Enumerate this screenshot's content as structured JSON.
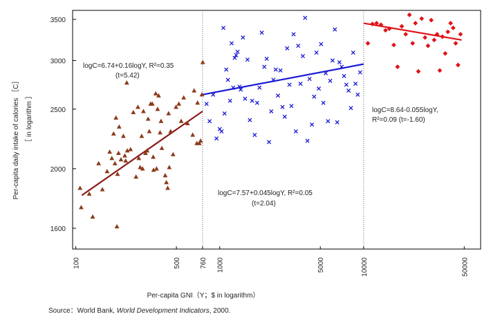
{
  "chart_data": {
    "type": "scatter",
    "x_scale": "log",
    "y_scale": "log",
    "xlim": [
      95,
      65000
    ],
    "ylim": [
      1480,
      3620
    ],
    "grid": false,
    "xlabel": "Per-capita GNI（Y；$ in logarithm）",
    "ylabel_main": "Per-capita daily intake of calories ［C］",
    "ylabel_sub": "［ in logarithm ］",
    "x_ticks": [
      100,
      500,
      760,
      1000,
      5000,
      10000,
      50000
    ],
    "x_tick_labels": [
      "100",
      "500",
      "760",
      "1000",
      "5000",
      "10000",
      "50000"
    ],
    "y_ticks": [
      1600,
      2000,
      2500,
      3000,
      3500
    ],
    "y_tick_labels": [
      "1600",
      "2000",
      "2500",
      "3000",
      "3500"
    ],
    "dividers": [
      760,
      10000
    ],
    "source_prefix": "Source：World Bank, ",
    "source_title": "World Development Indicators",
    "source_suffix": ", 2000.",
    "series": [
      {
        "marker": "triangle",
        "color": "#8B3A1A",
        "fit_color": "#8B1A1A",
        "fit": [
          [
            110,
            1810
          ],
          [
            760,
            2480
          ]
        ],
        "equation": "logC=6.74+0.16logY,  R²=0.35",
        "stat": "(t=5.42)",
        "points": [
          [
            107,
            1860
          ],
          [
            109,
            1730
          ],
          [
            124,
            1820
          ],
          [
            131,
            1670
          ],
          [
            144,
            2040
          ],
          [
            153,
            1850
          ],
          [
            165,
            1980
          ],
          [
            172,
            2130
          ],
          [
            178,
            2080
          ],
          [
            183,
            2280
          ],
          [
            187,
            2040
          ],
          [
            190,
            2420
          ],
          [
            193,
            1610
          ],
          [
            195,
            1960
          ],
          [
            198,
            2120
          ],
          [
            200,
            2340
          ],
          [
            206,
            2070
          ],
          [
            214,
            2260
          ],
          [
            219,
            2100
          ],
          [
            222,
            2060
          ],
          [
            226,
            2760
          ],
          [
            228,
            2140
          ],
          [
            240,
            2150
          ],
          [
            251,
            2470
          ],
          [
            262,
            1940
          ],
          [
            270,
            2520
          ],
          [
            274,
            2080
          ],
          [
            280,
            2010
          ],
          [
            287,
            2260
          ],
          [
            291,
            2000
          ],
          [
            295,
            2480
          ],
          [
            305,
            2120
          ],
          [
            313,
            2140
          ],
          [
            318,
            2410
          ],
          [
            324,
            2300
          ],
          [
            331,
            2550
          ],
          [
            340,
            2550
          ],
          [
            345,
            2090
          ],
          [
            347,
            1990
          ],
          [
            359,
            2650
          ],
          [
            364,
            2000
          ],
          [
            370,
            2500
          ],
          [
            376,
            2630
          ],
          [
            385,
            2290
          ],
          [
            391,
            2390
          ],
          [
            396,
            2160
          ],
          [
            418,
            1950
          ],
          [
            426,
            1900
          ],
          [
            435,
            1860
          ],
          [
            441,
            2460
          ],
          [
            446,
            2010
          ],
          [
            456,
            2300
          ],
          [
            474,
            2110
          ],
          [
            497,
            2520
          ],
          [
            520,
            2550
          ],
          [
            540,
            2390
          ],
          [
            562,
            2610
          ],
          [
            597,
            2370
          ],
          [
            649,
            2270
          ],
          [
            664,
            2680
          ],
          [
            693,
            2200
          ],
          [
            701,
            2560
          ],
          [
            721,
            2200
          ],
          [
            736,
            2220
          ],
          [
            752,
            2640
          ],
          [
            762,
            2980
          ]
        ]
      },
      {
        "marker": "cross",
        "color": "#1a1ad6",
        "fit_color": "#1a1ad6",
        "fit": [
          [
            760,
            2640
          ],
          [
            10000,
            2960
          ]
        ],
        "equation": "logC=7.57+0.045logY,  R²=0.05",
        "stat": "(t=2.04)",
        "points": [
          [
            810,
            2550
          ],
          [
            850,
            2390
          ],
          [
            900,
            2640
          ],
          [
            950,
            2240
          ],
          [
            1000,
            2320
          ],
          [
            1030,
            2300
          ],
          [
            1060,
            3390
          ],
          [
            1080,
            2460
          ],
          [
            1110,
            2900
          ],
          [
            1140,
            2790
          ],
          [
            1180,
            2580
          ],
          [
            1210,
            3200
          ],
          [
            1240,
            2710
          ],
          [
            1270,
            3030
          ],
          [
            1300,
            3060
          ],
          [
            1330,
            3100
          ],
          [
            1370,
            2720
          ],
          [
            1400,
            2690
          ],
          [
            1450,
            3270
          ],
          [
            1500,
            2600
          ],
          [
            1560,
            3010
          ],
          [
            1620,
            2400
          ],
          [
            1680,
            2580
          ],
          [
            1750,
            2270
          ],
          [
            1820,
            2560
          ],
          [
            1890,
            2710
          ],
          [
            1960,
            3330
          ],
          [
            2040,
            2930
          ],
          [
            2120,
            3020
          ],
          [
            2200,
            2210
          ],
          [
            2280,
            2480
          ],
          [
            2360,
            2790
          ],
          [
            2450,
            2900
          ],
          [
            2540,
            2630
          ],
          [
            2640,
            2890
          ],
          [
            2730,
            2520
          ],
          [
            2830,
            2430
          ],
          [
            2940,
            3140
          ],
          [
            3050,
            2740
          ],
          [
            3150,
            2530
          ],
          [
            3260,
            3310
          ],
          [
            3380,
            2300
          ],
          [
            3510,
            3170
          ],
          [
            3640,
            2750
          ],
          [
            3780,
            3050
          ],
          [
            3920,
            3520
          ],
          [
            4070,
            2220
          ],
          [
            4210,
            2800
          ],
          [
            4370,
            2360
          ],
          [
            4530,
            2620
          ],
          [
            4700,
            3090
          ],
          [
            4880,
            2700
          ],
          [
            5060,
            3190
          ],
          [
            5250,
            2560
          ],
          [
            5450,
            2860
          ],
          [
            5650,
            2390
          ],
          [
            5860,
            2780
          ],
          [
            6080,
            3000
          ],
          [
            6310,
            3370
          ],
          [
            6550,
            2380
          ],
          [
            6790,
            2980
          ],
          [
            7040,
            2930
          ],
          [
            7310,
            2830
          ],
          [
            7580,
            2740
          ],
          [
            7860,
            2680
          ],
          [
            8160,
            2510
          ],
          [
            8460,
            3090
          ],
          [
            8780,
            2750
          ],
          [
            9100,
            2640
          ],
          [
            9450,
            2870
          ]
        ]
      },
      {
        "marker": "diamond",
        "color": "#e0141a",
        "fit_color": "#e0141a",
        "fit": [
          [
            10000,
            3450
          ],
          [
            48000,
            3240
          ]
        ],
        "equation": "logC=8.64-0.055logY,",
        "stat": "R²=0.09   (t=-1.60)",
        "points": [
          [
            10700,
            3200
          ],
          [
            11500,
            3440
          ],
          [
            12300,
            3450
          ],
          [
            13200,
            3430
          ],
          [
            14200,
            3360
          ],
          [
            15100,
            3380
          ],
          [
            16200,
            3180
          ],
          [
            17200,
            2930
          ],
          [
            18400,
            3410
          ],
          [
            19600,
            3310
          ],
          [
            20800,
            3560
          ],
          [
            21900,
            3200
          ],
          [
            22900,
            3450
          ],
          [
            24000,
            2880
          ],
          [
            25300,
            3510
          ],
          [
            26700,
            3270
          ],
          [
            28000,
            3170
          ],
          [
            29500,
            3490
          ],
          [
            30900,
            3240
          ],
          [
            32400,
            3310
          ],
          [
            33800,
            2890
          ],
          [
            35300,
            3280
          ],
          [
            36900,
            3080
          ],
          [
            38500,
            3340
          ],
          [
            40200,
            3450
          ],
          [
            41900,
            3390
          ],
          [
            43600,
            3200
          ],
          [
            45300,
            2950
          ],
          [
            47100,
            3310
          ]
        ]
      }
    ]
  }
}
